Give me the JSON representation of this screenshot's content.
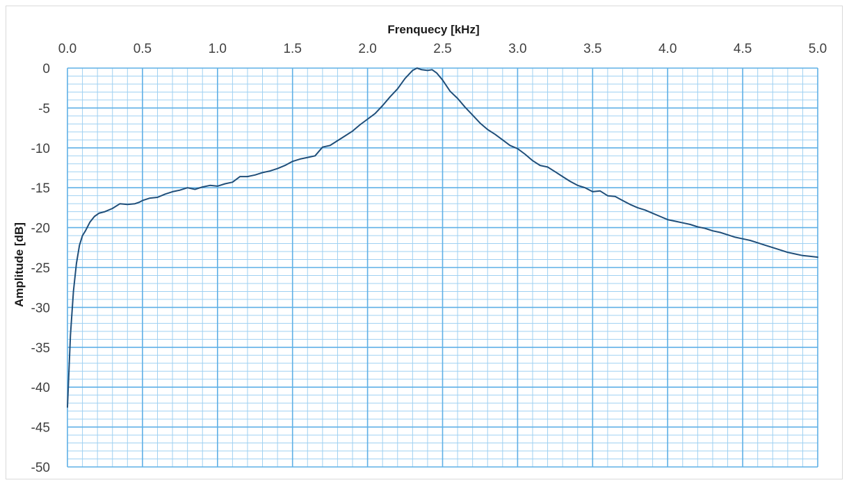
{
  "chart_data": {
    "type": "line",
    "title": "",
    "xlabel": "Frenquecy [kHz]",
    "ylabel": "Amplitude [dB]",
    "xlim": [
      0,
      5
    ],
    "ylim": [
      -50,
      0
    ],
    "x_major_step": 0.5,
    "x_minor_step": 0.1,
    "y_major_step": 5,
    "y_minor_step": 1,
    "x_axis_position": "top",
    "grid": true,
    "x_tick_labels": [
      "0.0",
      "0.5",
      "1.0",
      "1.5",
      "2.0",
      "2.5",
      "3.0",
      "3.5",
      "4.0",
      "4.5",
      "5.0"
    ],
    "y_tick_labels": [
      "0",
      "-5",
      "-10",
      "-15",
      "-20",
      "-25",
      "-30",
      "-35",
      "-40",
      "-45",
      "-50"
    ],
    "colors": {
      "series": "#1f4e79",
      "major_grid": "#5fb0e6",
      "minor_grid": "#9fd1f2"
    },
    "series": [
      {
        "name": "",
        "x": [
          0.0,
          0.02,
          0.04,
          0.06,
          0.08,
          0.1,
          0.12,
          0.15,
          0.18,
          0.21,
          0.25,
          0.3,
          0.35,
          0.4,
          0.45,
          0.48,
          0.5,
          0.55,
          0.6,
          0.65,
          0.7,
          0.75,
          0.8,
          0.85,
          0.9,
          0.95,
          1.0,
          1.05,
          1.1,
          1.15,
          1.2,
          1.25,
          1.3,
          1.35,
          1.4,
          1.45,
          1.5,
          1.55,
          1.6,
          1.65,
          1.7,
          1.75,
          1.8,
          1.85,
          1.9,
          1.95,
          2.0,
          2.05,
          2.1,
          2.15,
          2.2,
          2.25,
          2.3,
          2.33,
          2.36,
          2.4,
          2.43,
          2.46,
          2.5,
          2.55,
          2.6,
          2.65,
          2.7,
          2.75,
          2.8,
          2.85,
          2.9,
          2.95,
          3.0,
          3.05,
          3.1,
          3.15,
          3.2,
          3.25,
          3.3,
          3.35,
          3.4,
          3.45,
          3.5,
          3.55,
          3.6,
          3.65,
          3.7,
          3.75,
          3.8,
          3.85,
          3.9,
          3.95,
          4.0,
          4.05,
          4.1,
          4.15,
          4.2,
          4.25,
          4.3,
          4.35,
          4.4,
          4.45,
          4.5,
          4.55,
          4.6,
          4.65,
          4.7,
          4.75,
          4.8,
          4.85,
          4.9,
          4.95,
          5.0
        ],
        "y": [
          -42.5,
          -33.5,
          -28.0,
          -24.5,
          -22.2,
          -21.0,
          -20.4,
          -19.3,
          -18.6,
          -18.2,
          -18.0,
          -17.6,
          -17.0,
          -17.1,
          -17.0,
          -16.8,
          -16.6,
          -16.3,
          -16.2,
          -15.8,
          -15.5,
          -15.3,
          -15.0,
          -15.2,
          -14.9,
          -14.7,
          -14.8,
          -14.5,
          -14.3,
          -13.6,
          -13.6,
          -13.4,
          -13.1,
          -12.9,
          -12.6,
          -12.2,
          -11.7,
          -11.4,
          -11.2,
          -11.0,
          -9.9,
          -9.7,
          -9.1,
          -8.5,
          -7.9,
          -7.1,
          -6.4,
          -5.7,
          -4.7,
          -3.6,
          -2.6,
          -1.3,
          -0.3,
          0.0,
          -0.2,
          -0.3,
          -0.2,
          -0.6,
          -1.5,
          -2.9,
          -3.8,
          -4.9,
          -5.9,
          -6.9,
          -7.7,
          -8.3,
          -9.0,
          -9.7,
          -10.1,
          -10.8,
          -11.6,
          -12.2,
          -12.4,
          -13.0,
          -13.6,
          -14.2,
          -14.7,
          -15.0,
          -15.5,
          -15.4,
          -16.0,
          -16.1,
          -16.6,
          -17.1,
          -17.5,
          -17.8,
          -18.2,
          -18.6,
          -19.0,
          -19.2,
          -19.4,
          -19.6,
          -19.9,
          -20.1,
          -20.4,
          -20.6,
          -20.9,
          -21.2,
          -21.4,
          -21.6,
          -21.9,
          -22.2,
          -22.5,
          -22.8,
          -23.1,
          -23.3,
          -23.5,
          -23.6,
          -23.7
        ]
      }
    ]
  }
}
